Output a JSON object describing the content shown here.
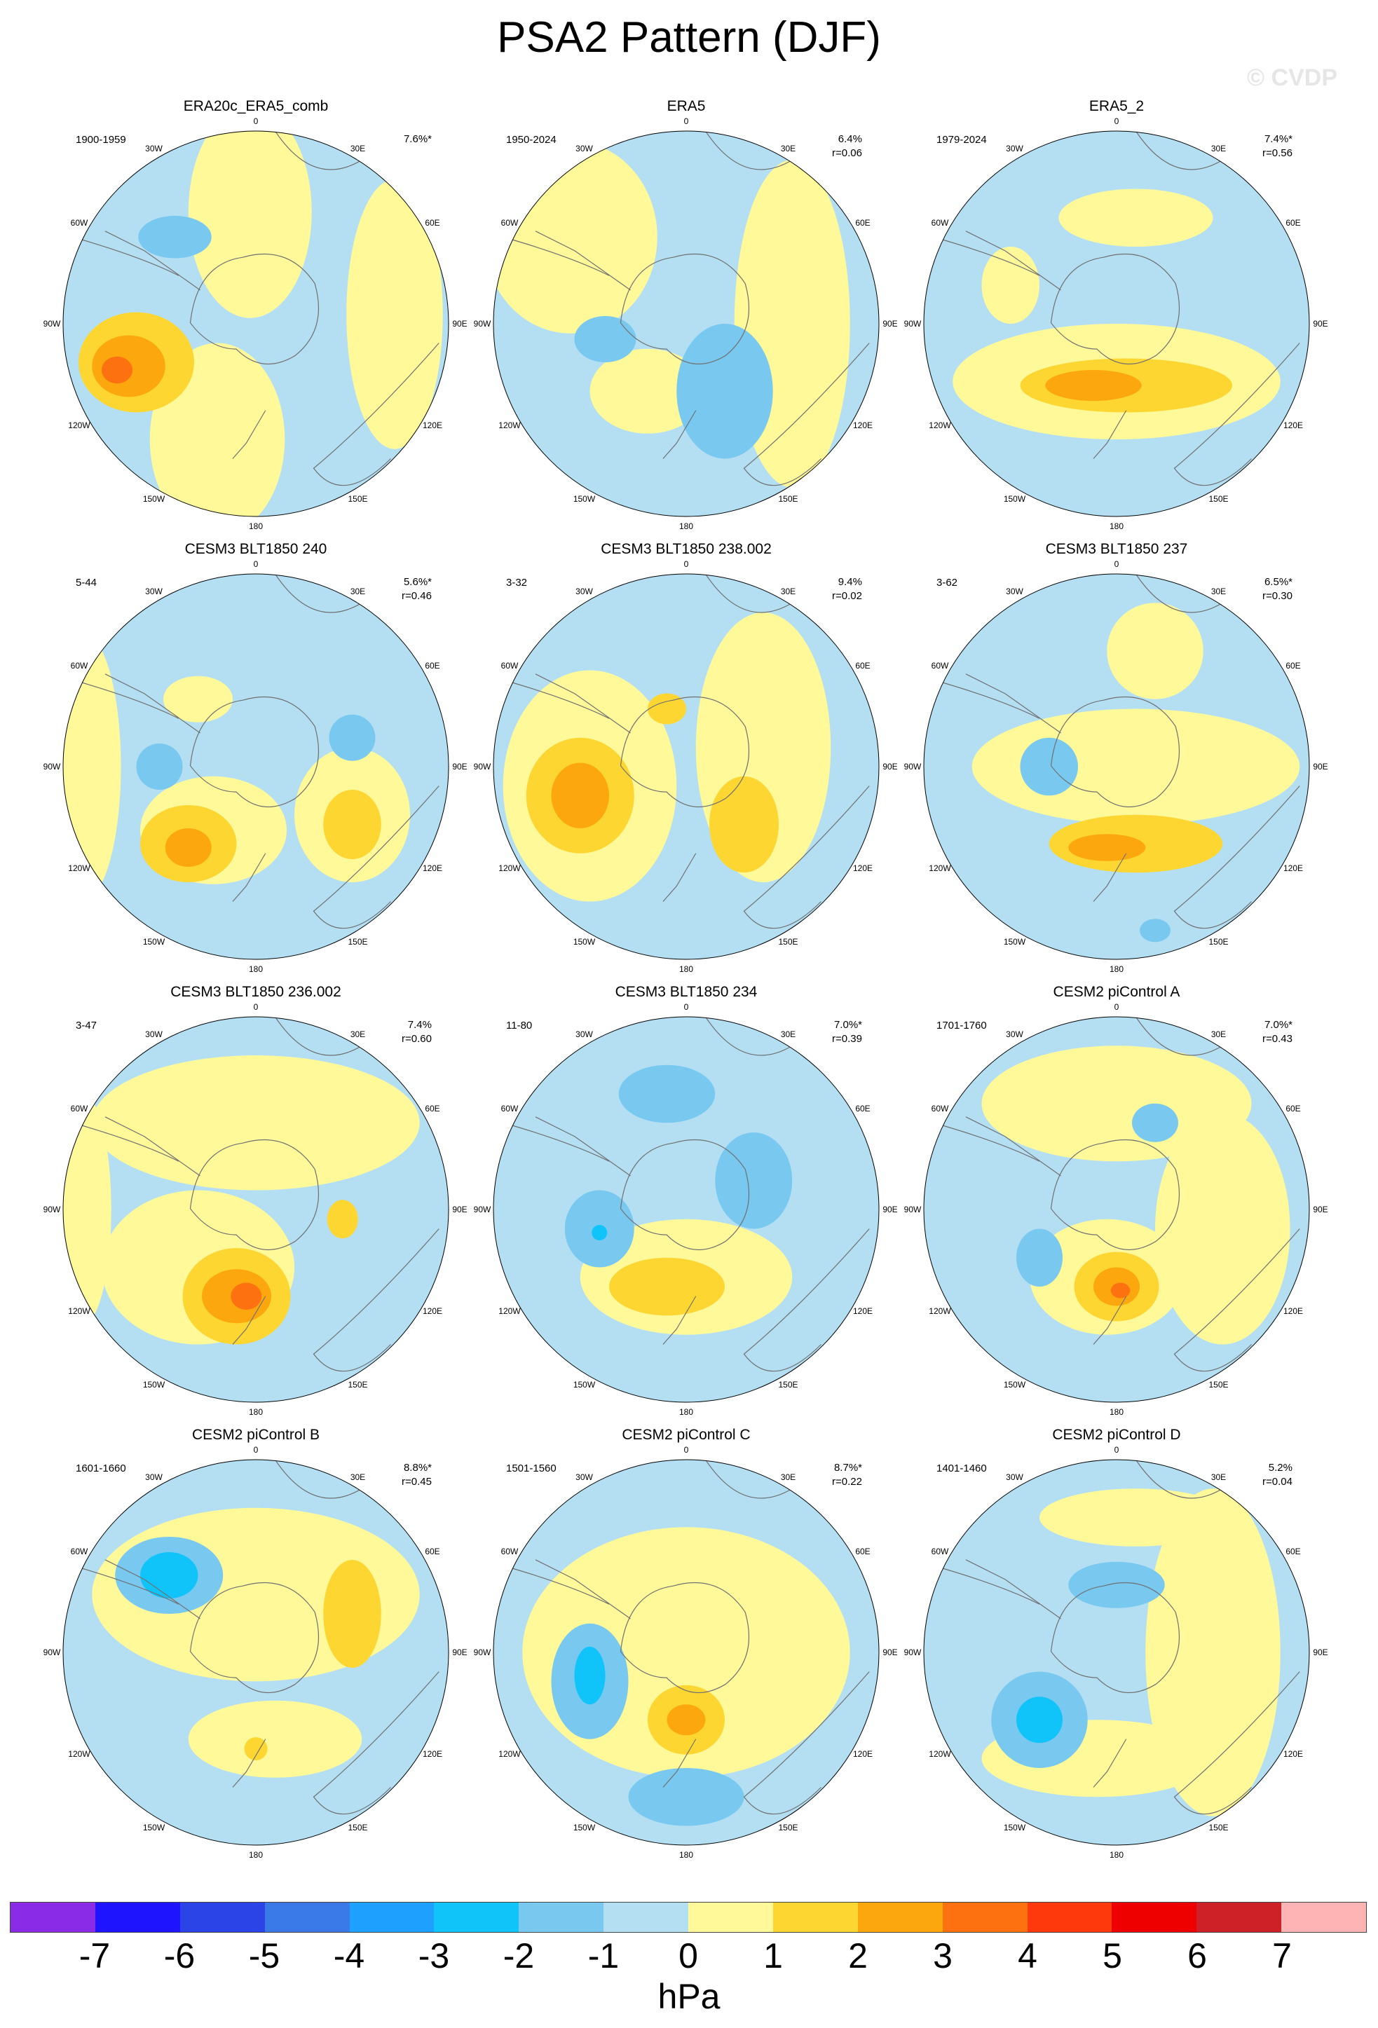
{
  "title": "PSA2 Pattern (DJF)",
  "watermark": "© CVDP",
  "lon_labels": {
    "0": "0",
    "30e": "30E",
    "60e": "60E",
    "90e": "90E",
    "120e": "120E",
    "150e": "150E",
    "180": "180",
    "150w": "150W",
    "120w": "120W",
    "90w": "90W",
    "60w": "60W",
    "30w": "30W"
  },
  "colors": {
    "ocean_neg1": "#b4dff3",
    "pos1": "#fff99a",
    "pos2": "#fdd631",
    "pos3": "#fda70f",
    "pos4": "#fd7110",
    "neg2": "#78c8f0",
    "neg3": "#10c4fa"
  },
  "chart_data": {
    "type": "heatmap",
    "title": "PSA2 Pattern (DJF)",
    "projection": "south polar stereographic",
    "units": "hPa",
    "colorbar": {
      "labels": [
        "-7",
        "-6",
        "-5",
        "-4",
        "-3",
        "-2",
        "-1",
        "0",
        "1",
        "2",
        "3",
        "4",
        "5",
        "6",
        "7"
      ],
      "colors": [
        "#8a2be8",
        "#1e14fe",
        "#2b44e8",
        "#3a7ae8",
        "#1ea0fe",
        "#10c4fa",
        "#78c8f0",
        "#b4dff3",
        "#fff99a",
        "#fdd631",
        "#fda70f",
        "#fd7110",
        "#fe3a0c",
        "#ee0000",
        "#cd2027",
        "#feb4b4"
      ]
    },
    "panels": [
      {
        "title": "ERA20c_ERA5_comb",
        "years": "1900-1959",
        "pct": "7.6%*",
        "r": "",
        "max_level": 3,
        "min_level": -2
      },
      {
        "title": "ERA5",
        "years": "1950-2024",
        "pct": "6.4%",
        "r": "r=0.06",
        "max_level": 1,
        "min_level": -2
      },
      {
        "title": "ERA5_2",
        "years": "1979-2024",
        "pct": "7.4%*",
        "r": "r=0.56",
        "max_level": 3,
        "min_level": -1
      },
      {
        "title": "CESM3 BLT1850 240",
        "years": "5-44",
        "pct": "5.6%*",
        "r": "r=0.46",
        "max_level": 3,
        "min_level": -2
      },
      {
        "title": "CESM3 BLT1850 238.002",
        "years": "3-32",
        "pct": "9.4%",
        "r": "r=0.02",
        "max_level": 3,
        "min_level": -2
      },
      {
        "title": "CESM3 BLT1850 237",
        "years": "3-62",
        "pct": "6.5%*",
        "r": "r=0.30",
        "max_level": 3,
        "min_level": -2
      },
      {
        "title": "CESM3 BLT1850 236.002",
        "years": "3-47",
        "pct": "7.4%",
        "r": "r=0.60",
        "max_level": 4,
        "min_level": -2
      },
      {
        "title": "CESM3 BLT1850 234",
        "years": "11-80",
        "pct": "7.0%*",
        "r": "r=0.39",
        "max_level": 2,
        "min_level": -3
      },
      {
        "title": "CESM2 piControl A",
        "years": "1701-1760",
        "pct": "7.0%*",
        "r": "r=0.43",
        "max_level": 4,
        "min_level": -2
      },
      {
        "title": "CESM2 piControl B",
        "years": "1601-1660",
        "pct": "8.8%*",
        "r": "r=0.45",
        "max_level": 2,
        "min_level": -3
      },
      {
        "title": "CESM2 piControl C",
        "years": "1501-1560",
        "pct": "8.7%*",
        "r": "r=0.22",
        "max_level": 3,
        "min_level": -3
      },
      {
        "title": "CESM2 piControl D",
        "years": "1401-1460",
        "pct": "5.2%",
        "r": "r=0.04",
        "max_level": 1,
        "min_level": -3
      }
    ]
  }
}
